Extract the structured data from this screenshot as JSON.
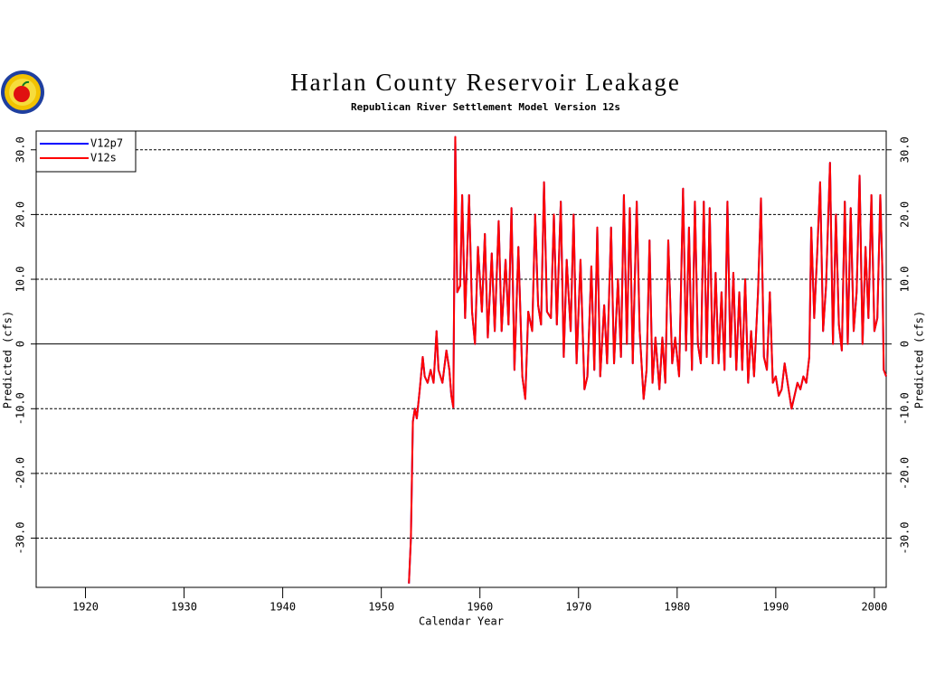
{
  "chart_data": {
    "type": "line",
    "title": "Harlan County Reservoir Leakage",
    "subtitle": "Republican River Settlement Model Version 12s",
    "x_label": "Calendar Year",
    "y_label": "Predicted (cfs)",
    "xlim": [
      1915,
      2001.2
    ],
    "ylim": [
      -37.6,
      32.9
    ],
    "xticks": [
      1920,
      1930,
      1940,
      1950,
      1960,
      1970,
      1980,
      1990,
      2000
    ],
    "yticks": [
      {
        "value": -30,
        "label": "-30.0"
      },
      {
        "value": -20,
        "label": "-20.0"
      },
      {
        "value": -10,
        "label": "-10.0"
      },
      0,
      {
        "value": 10,
        "label": "10.0"
      },
      {
        "value": 20,
        "label": "20.0"
      },
      {
        "value": 30,
        "label": "30.0"
      }
    ],
    "grid": true,
    "legend": "upper left",
    "x": [
      1952.8,
      1953.0,
      1953.2,
      1953.4,
      1953.6,
      1953.9,
      1954.2,
      1954.4,
      1954.7,
      1955.0,
      1955.3,
      1955.6,
      1955.8,
      1956.2,
      1956.6,
      1956.9,
      1957.1,
      1957.3,
      1957.5,
      1957.7,
      1958.0,
      1958.2,
      1958.5,
      1958.9,
      1959.2,
      1959.5,
      1959.8,
      1960.2,
      1960.5,
      1960.8,
      1961.2,
      1961.5,
      1961.9,
      1962.2,
      1962.6,
      1962.9,
      1963.2,
      1963.5,
      1963.9,
      1964.3,
      1964.6,
      1964.9,
      1965.3,
      1965.6,
      1965.9,
      1966.2,
      1966.5,
      1966.8,
      1967.2,
      1967.5,
      1967.8,
      1968.2,
      1968.5,
      1968.8,
      1969.2,
      1969.5,
      1969.8,
      1970.2,
      1970.6,
      1970.9,
      1971.3,
      1971.6,
      1971.9,
      1972.2,
      1972.6,
      1972.9,
      1973.3,
      1973.6,
      1974.0,
      1974.3,
      1974.6,
      1974.9,
      1975.2,
      1975.5,
      1975.9,
      1976.2,
      1976.6,
      1976.9,
      1977.2,
      1977.5,
      1977.8,
      1978.2,
      1978.5,
      1978.8,
      1979.1,
      1979.5,
      1979.8,
      1980.2,
      1980.6,
      1980.9,
      1981.2,
      1981.5,
      1981.8,
      1982.1,
      1982.4,
      1982.7,
      1983.0,
      1983.3,
      1983.6,
      1983.9,
      1984.2,
      1984.5,
      1984.8,
      1985.1,
      1985.4,
      1985.7,
      1986.0,
      1986.3,
      1986.6,
      1986.9,
      1987.2,
      1987.5,
      1987.8,
      1988.2,
      1988.5,
      1988.8,
      1989.1,
      1989.4,
      1989.7,
      1990.0,
      1990.3,
      1990.6,
      1990.9,
      1991.2,
      1991.6,
      1991.9,
      1992.2,
      1992.5,
      1992.8,
      1993.1,
      1993.4,
      1993.6,
      1993.9,
      1994.2,
      1994.5,
      1994.8,
      1995.1,
      1995.5,
      1995.8,
      1996.1,
      1996.4,
      1996.7,
      1997.0,
      1997.3,
      1997.6,
      1997.9,
      1998.2,
      1998.5,
      1998.8,
      1999.1,
      1999.4,
      1999.7,
      2000.0,
      2000.3,
      2000.6,
      2000.8,
      2000.95,
      2001.2
    ],
    "series": [
      {
        "name": "V12p7",
        "color": "#0000ff",
        "values": [
          -37,
          -30,
          -12,
          -10,
          -11.5,
          -7,
          -2,
          -5,
          -6,
          -4,
          -6,
          2,
          -4,
          -6,
          -1,
          -4,
          -8,
          -9.8,
          32,
          8,
          9,
          23,
          4,
          23,
          5,
          0,
          15,
          5,
          17,
          1,
          14,
          2,
          19,
          2,
          13,
          3,
          21,
          -4,
          15,
          -5,
          -8.5,
          5,
          2,
          20,
          6,
          3,
          25,
          5,
          4,
          20,
          3,
          22,
          -2,
          13,
          2,
          20,
          -3,
          13,
          -7,
          -5,
          12,
          -4,
          18,
          -5,
          6,
          -3,
          18,
          -3,
          10,
          -2,
          23,
          0,
          21,
          -3,
          22,
          2,
          -8.5,
          -4,
          16,
          -6,
          1,
          -7,
          1,
          -6,
          16,
          -3,
          1,
          -5,
          24,
          -1,
          18,
          -4,
          22,
          0,
          -3,
          22,
          -2,
          21,
          -3,
          11,
          -3,
          8,
          -4,
          22,
          -2,
          11,
          -4,
          8,
          -4,
          10,
          -6,
          2,
          -5,
          8,
          22.5,
          -2,
          -4,
          8,
          -6,
          -5,
          -8,
          -7,
          -3,
          -6,
          -10,
          -8,
          -6,
          -7,
          -5,
          -6,
          -2,
          18,
          4,
          14,
          25,
          2,
          9,
          28,
          0,
          20,
          3,
          -1,
          22,
          0,
          21,
          2,
          8,
          26,
          0,
          15,
          4,
          23,
          2,
          4,
          23,
          12,
          -4,
          -5
        ]
      },
      {
        "name": "V12s",
        "color": "#ff0000",
        "values": [
          -37,
          -30,
          -12,
          -10,
          -11.5,
          -7,
          -2,
          -5,
          -6,
          -4,
          -6,
          2,
          -4,
          -6,
          -1,
          -4,
          -8,
          -9.8,
          32,
          8,
          9,
          23,
          4,
          23,
          5,
          0,
          15,
          5,
          17,
          1,
          14,
          2,
          19,
          2,
          13,
          3,
          21,
          -4,
          15,
          -5,
          -8.5,
          5,
          2,
          20,
          6,
          3,
          25,
          5,
          4,
          20,
          3,
          22,
          -2,
          13,
          2,
          20,
          -3,
          13,
          -7,
          -5,
          12,
          -4,
          18,
          -5,
          6,
          -3,
          18,
          -3,
          10,
          -2,
          23,
          0,
          21,
          -3,
          22,
          2,
          -8.5,
          -4,
          16,
          -6,
          1,
          -7,
          1,
          -6,
          16,
          -3,
          1,
          -5,
          24,
          -1,
          18,
          -4,
          22,
          0,
          -3,
          22,
          -2,
          21,
          -3,
          11,
          -3,
          8,
          -4,
          22,
          -2,
          11,
          -4,
          8,
          -4,
          10,
          -6,
          2,
          -5,
          8,
          22.5,
          -2,
          -4,
          8,
          -6,
          -5,
          -8,
          -7,
          -3,
          -6,
          -10,
          -8,
          -6,
          -7,
          -5,
          -6,
          -2,
          18,
          4,
          14,
          25,
          2,
          9,
          28,
          0,
          20,
          3,
          -1,
          22,
          0,
          21,
          2,
          8,
          26,
          0,
          15,
          4,
          23,
          2,
          4,
          23,
          12,
          -4,
          -5
        ]
      }
    ]
  }
}
